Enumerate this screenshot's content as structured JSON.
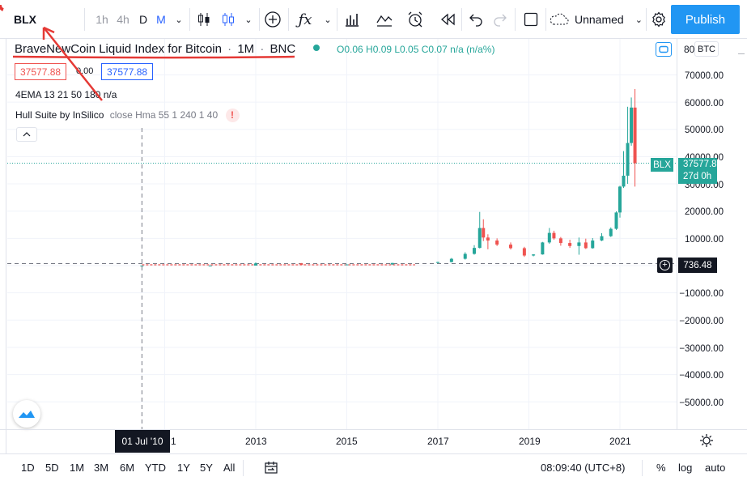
{
  "toolbar": {
    "symbol": "BLX",
    "intervals": [
      "1h",
      "4h",
      "D",
      "M"
    ],
    "layout_name": "Unnamed",
    "publish_label": "Publish"
  },
  "legend": {
    "title": "BraveNewCoin Liquid Index for Bitcoin",
    "interval": "1M",
    "exchange": "BNC",
    "ohlc": "O0.06  H0.09  L0.05  C0.07  n/a (n/a%)",
    "price_left": "37577.88",
    "price_mid": "0.00",
    "price_right": "37577.88",
    "indicator1": "4EMA  13 21 50 180  n/a",
    "indicator2_name": "Hull Suite by InSilico",
    "indicator2_params": "close Hma 55 1 240 1 40",
    "indicator2_warning": "!"
  },
  "price_scale": {
    "currency": "BTC",
    "top_label": "80",
    "labels": [
      "70000.00",
      "60000.00",
      "50000.00",
      "40000.00",
      "30000.00",
      "20000.00",
      "10000.00",
      "−10000.00",
      "−20000.00",
      "−30000.00",
      "−40000.00",
      "−50000.00"
    ],
    "last_symbol": "BLX",
    "last_price": "37577.88",
    "last_countdown": "27d 0h",
    "crosshair_price": "736.48",
    "crosshair_plus": "+"
  },
  "time_axis": {
    "labels": [
      "1",
      "2013",
      "2015",
      "2017",
      "2019",
      "2021"
    ],
    "crosshair_date": "01 Jul '10"
  },
  "bottom_bar": {
    "ranges": [
      "1D",
      "5D",
      "1M",
      "3M",
      "6M",
      "YTD",
      "1Y",
      "5Y",
      "All"
    ],
    "clock": "08:09:40 (UTC+8)",
    "percent": "%",
    "log": "log",
    "auto": "auto"
  },
  "colors": {
    "up": "#26a69a",
    "down": "#ef5350",
    "accent": "#2962ff",
    "annotation": "#e53935",
    "publish_bg": "#2196f3"
  },
  "chart_data": {
    "type": "candlestick",
    "ylim": [
      -55000,
      82000
    ],
    "x": [
      2010.5,
      2012,
      2013,
      2014,
      2015,
      2016,
      2017,
      2017.3,
      2017.6,
      2017.8,
      2017.92,
      2018.0,
      2018.1,
      2018.3,
      2018.6,
      2018.9,
      2019.1,
      2019.3,
      2019.45,
      2019.55,
      2019.7,
      2019.9,
      2020.1,
      2020.25,
      2020.4,
      2020.6,
      2020.8,
      2020.92,
      2021.0,
      2021.08,
      2021.17,
      2021.25,
      2021.33
    ],
    "open": [
      0.06,
      5,
      13,
      800,
      320,
      430,
      1000,
      1300,
      2500,
      4300,
      6500,
      13800,
      10300,
      9200,
      7700,
      6400,
      3700,
      4100,
      8500,
      12000,
      10000,
      8300,
      7200,
      8500,
      6400,
      9200,
      10800,
      13500,
      19500,
      29000,
      33000,
      45000,
      58000
    ],
    "high": [
      0.09,
      14,
      1200,
      950,
      500,
      980,
      1400,
      2800,
      4900,
      7500,
      19700,
      17000,
      11500,
      10000,
      8500,
      6900,
      4200,
      8700,
      13800,
      12800,
      10500,
      9500,
      10300,
      9900,
      10100,
      11900,
      14000,
      19900,
      29300,
      42000,
      58300,
      61700,
      64800
    ],
    "low": [
      0.05,
      4,
      12,
      300,
      180,
      370,
      800,
      1200,
      2200,
      4000,
      6300,
      9000,
      6000,
      7200,
      5900,
      3200,
      3400,
      4000,
      8000,
      9500,
      7300,
      6500,
      4000,
      6100,
      6200,
      9000,
      10500,
      13100,
      17600,
      28500,
      30000,
      44000,
      29000
    ],
    "close": [
      0.07,
      13,
      800,
      320,
      430,
      970,
      1300,
      2500,
      4300,
      6500,
      13800,
      10300,
      9200,
      7700,
      6400,
      3700,
      4100,
      8500,
      12000,
      10000,
      8300,
      7200,
      8500,
      6400,
      9200,
      10800,
      13500,
      19500,
      29000,
      33000,
      45000,
      58000,
      37577.88
    ]
  }
}
